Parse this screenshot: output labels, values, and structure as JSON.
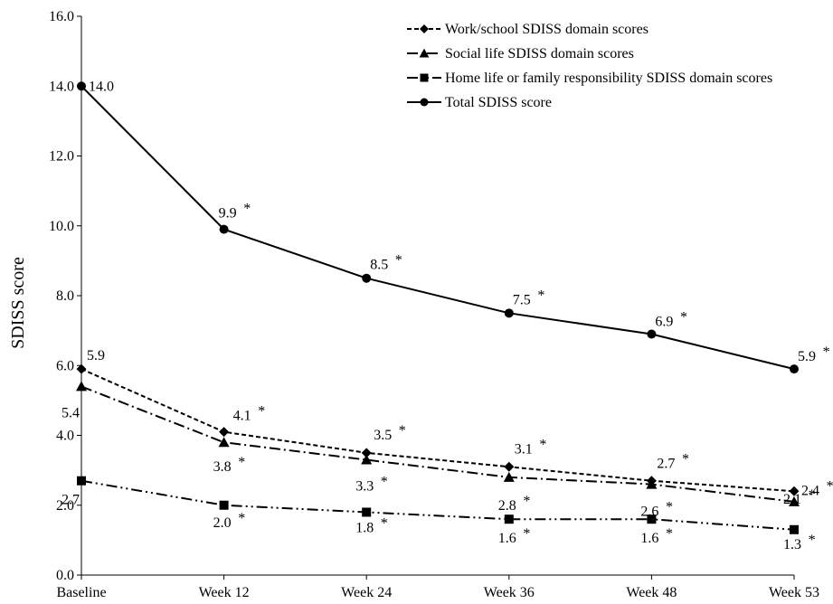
{
  "chart_data": {
    "type": "line",
    "title": "",
    "xlabel": "",
    "ylabel": "SDISS score",
    "ylim": [
      0,
      16
    ],
    "y_ticks": [
      "0.0",
      "2.0",
      "4.0",
      "6.0",
      "8.0",
      "10.0",
      "12.0",
      "14.0",
      "16.0"
    ],
    "categories": [
      "Baseline",
      "Week 12",
      "Week 24",
      "Week 36",
      "Week 48",
      "Week 53"
    ],
    "grid": false,
    "legend_position": "top-right",
    "significance_marker": "*",
    "series": [
      {
        "name": "Work/school SDISS domain scores",
        "marker": "diamond",
        "line_style": "dashed",
        "values": [
          5.9,
          4.1,
          3.5,
          3.1,
          2.7,
          2.4
        ],
        "labels": [
          "5.9",
          "4.1",
          "3.5",
          "3.1",
          "2.7",
          "2.4"
        ],
        "significant": [
          false,
          true,
          true,
          true,
          true,
          true
        ]
      },
      {
        "name": "Social life SDISS domain scores",
        "marker": "triangle",
        "line_style": "dash-dot",
        "values": [
          5.4,
          3.8,
          3.3,
          2.8,
          2.6,
          2.1
        ],
        "labels": [
          "5.4",
          "3.8",
          "3.3",
          "2.8",
          "2.6",
          "2.1"
        ],
        "significant": [
          false,
          true,
          true,
          true,
          true,
          true
        ]
      },
      {
        "name": "Home life or family responsibility SDISS domain scores",
        "marker": "square",
        "line_style": "dash-dot-dot",
        "values": [
          2.7,
          2.0,
          1.8,
          1.6,
          1.6,
          1.3
        ],
        "labels": [
          "2.7",
          "2.0",
          "1.8",
          "1.6",
          "1.6",
          "1.3"
        ],
        "significant": [
          false,
          true,
          true,
          true,
          true,
          true
        ]
      },
      {
        "name": "Total SDISS score",
        "marker": "circle",
        "line_style": "solid",
        "values": [
          14.0,
          9.9,
          8.5,
          7.5,
          6.9,
          5.9
        ],
        "labels": [
          "14.0",
          "9.9",
          "8.5",
          "7.5",
          "6.9",
          "5.9"
        ],
        "significant": [
          false,
          true,
          true,
          true,
          true,
          true
        ]
      }
    ]
  }
}
